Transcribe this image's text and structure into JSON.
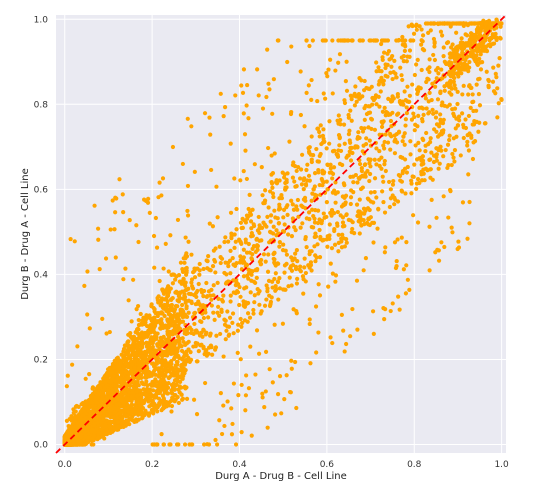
{
  "chart_data": {
    "type": "scatter",
    "title": "",
    "xlabel": "Durg A - Drug B - Cell Line",
    "ylabel": "Durg B - Drug A - Cell Line",
    "xlim": [
      -0.02,
      1.01
    ],
    "ylim": [
      -0.02,
      1.01
    ],
    "xticks": [
      "0.0",
      "0.2",
      "0.4",
      "0.6",
      "0.8",
      "1.0"
    ],
    "yticks": [
      "0.0",
      "0.2",
      "0.4",
      "0.6",
      "0.8",
      "1.0"
    ],
    "grid": true,
    "background_color": "#eaeaf2",
    "point_color": "#ffa500",
    "reference_line": {
      "type": "y=x",
      "color": "#ff0000",
      "style": "dashed",
      "from": [
        -0.02,
        -0.02
      ],
      "to": [
        1.01,
        1.01
      ]
    },
    "series": [
      {
        "x": [
          0.02,
          0.03,
          0.04,
          0.05,
          0.06,
          0.07,
          0.08,
          0.09,
          0.1,
          0.11,
          0.12,
          0.13,
          0.14,
          0.15,
          0.16,
          0.17,
          0.18,
          0.19,
          0.2,
          0.21,
          0.22,
          0.23,
          0.24,
          0.25,
          0.26,
          0.27,
          0.28,
          0.29,
          0.3,
          0.31,
          0.32,
          0.33,
          0.34,
          0.35,
          0.36,
          0.37,
          0.38,
          0.39,
          0.4,
          0.41,
          0.42,
          0.43,
          0.44,
          0.45,
          0.46,
          0.47,
          0.48,
          0.49,
          0.5,
          0.51,
          0.52,
          0.53,
          0.54,
          0.55,
          0.56,
          0.57,
          0.58,
          0.59,
          0.6,
          0.61,
          0.62,
          0.63,
          0.64,
          0.65,
          0.66,
          0.67,
          0.68,
          0.69,
          0.7,
          0.71,
          0.72,
          0.73,
          0.74,
          0.75,
          0.76,
          0.77,
          0.78,
          0.79,
          0.8,
          0.81,
          0.82,
          0.83,
          0.84,
          0.85,
          0.86,
          0.87,
          0.88,
          0.89,
          0.9,
          0.91,
          0.92,
          0.93,
          0.94,
          0.95,
          0.96,
          0.97,
          0.98
        ],
        "y": [
          0.01,
          0.03,
          0.05,
          0.04,
          0.07,
          0.06,
          0.09,
          0.08,
          0.11,
          0.1,
          0.12,
          0.14,
          0.13,
          0.15,
          0.18,
          0.16,
          0.17,
          0.22,
          0.19,
          0.2,
          0.24,
          0.21,
          0.26,
          0.23,
          0.28,
          0.25,
          0.3,
          0.27,
          0.33,
          0.29,
          0.32,
          0.36,
          0.31,
          0.38,
          0.34,
          0.4,
          0.35,
          0.42,
          0.37,
          0.44,
          0.39,
          0.46,
          0.41,
          0.48,
          0.43,
          0.5,
          0.45,
          0.52,
          0.47,
          0.54,
          0.49,
          0.56,
          0.51,
          0.58,
          0.53,
          0.6,
          0.55,
          0.62,
          0.57,
          0.64,
          0.59,
          0.66,
          0.61,
          0.68,
          0.63,
          0.7,
          0.65,
          0.72,
          0.67,
          0.74,
          0.69,
          0.76,
          0.71,
          0.78,
          0.73,
          0.8,
          0.75,
          0.82,
          0.77,
          0.84,
          0.79,
          0.86,
          0.81,
          0.88,
          0.83,
          0.9,
          0.85,
          0.92,
          0.87,
          0.94,
          0.89,
          0.96,
          0.91,
          0.97,
          0.93,
          0.98,
          0.99
        ]
      }
    ]
  }
}
